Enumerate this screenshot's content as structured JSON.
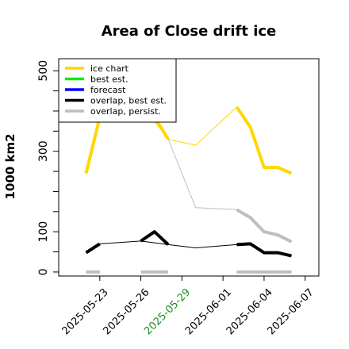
{
  "chart_data": {
    "type": "line",
    "title": "Area of Close drift ice",
    "ylabel": "1000 km2",
    "xlabel": "",
    "ylim": [
      -10,
      530
    ],
    "yticks": [
      0,
      100,
      300,
      500
    ],
    "xlim": [
      "2025-05-20",
      "2025-06-08"
    ],
    "xtick_labels": [
      "2025-05-23",
      "2025-05-26",
      "2025-05-29",
      "2025-06-01",
      "2025-06-04",
      "2025-06-07"
    ],
    "highlight_color": "#228b22",
    "highlight_tick": "2025-05-29",
    "legend": {
      "position": "top-left",
      "entries": [
        {
          "label": "ice chart",
          "color": "#ffd700"
        },
        {
          "label": "best est.",
          "color": "#00ee00"
        },
        {
          "label": "forecast",
          "color": "#0000ff"
        },
        {
          "label": "overlap, best est.",
          "color": "#000000"
        },
        {
          "label": "overlap, persist.",
          "color": "#bebebe"
        }
      ]
    },
    "series": [
      {
        "name": "ice chart",
        "color": "#ffd700",
        "style": "thick",
        "points": [
          [
            "2025-05-22",
            245
          ],
          [
            "2025-05-23",
            385
          ]
        ]
      },
      {
        "name": "ice chart",
        "color": "#ffd700",
        "style": "thick",
        "points": [
          [
            "2025-05-26",
            418
          ],
          [
            "2025-05-27",
            385
          ],
          [
            "2025-05-28",
            330
          ]
        ]
      },
      {
        "name": "ice chart",
        "color": "#ffd700",
        "style": "thick",
        "points": [
          [
            "2025-06-02",
            410
          ],
          [
            "2025-06-03",
            360
          ],
          [
            "2025-06-04",
            260
          ],
          [
            "2025-06-05",
            260
          ],
          [
            "2025-06-06",
            245
          ]
        ]
      },
      {
        "name": "ice chart",
        "color": "#ffd700",
        "style": "thin",
        "points": [
          [
            "2025-05-23",
            385
          ],
          [
            "2025-05-26",
            418
          ],
          [
            "2025-05-28",
            330
          ],
          [
            "2025-05-30",
            315
          ],
          [
            "2025-06-02",
            410
          ]
        ]
      },
      {
        "name": "overlap, best est.",
        "color": "#000000",
        "style": "thick",
        "points": [
          [
            "2025-05-22",
            48
          ],
          [
            "2025-05-23",
            70
          ]
        ]
      },
      {
        "name": "overlap, best est.",
        "color": "#000000",
        "style": "thick",
        "points": [
          [
            "2025-05-26",
            77
          ],
          [
            "2025-05-27",
            100
          ],
          [
            "2025-05-28",
            68
          ]
        ]
      },
      {
        "name": "overlap, best est.",
        "color": "#000000",
        "style": "thick",
        "points": [
          [
            "2025-06-02",
            68
          ],
          [
            "2025-06-03",
            70
          ],
          [
            "2025-06-04",
            48
          ],
          [
            "2025-06-05",
            48
          ],
          [
            "2025-06-06",
            40
          ]
        ]
      },
      {
        "name": "overlap, best est.",
        "color": "#000000",
        "style": "thin",
        "points": [
          [
            "2025-05-23",
            70
          ],
          [
            "2025-05-26",
            77
          ],
          [
            "2025-05-28",
            68
          ],
          [
            "2025-05-30",
            60
          ],
          [
            "2025-06-02",
            68
          ]
        ]
      },
      {
        "name": "overlap, persist.",
        "color": "#bebebe",
        "style": "thick",
        "points": [
          [
            "2025-06-02",
            155
          ],
          [
            "2025-06-03",
            135
          ],
          [
            "2025-06-04",
            100
          ],
          [
            "2025-06-05",
            92
          ],
          [
            "2025-06-06",
            75
          ]
        ]
      },
      {
        "name": "overlap, persist.",
        "color": "#bebebe",
        "style": "thin",
        "points": [
          [
            "2025-05-28",
            330
          ],
          [
            "2025-05-30",
            160
          ],
          [
            "2025-06-02",
            155
          ]
        ]
      },
      {
        "name": "overlap, persist.",
        "color": "#bebebe",
        "style": "thick",
        "points": [
          [
            "2025-05-22",
            0
          ],
          [
            "2025-05-23",
            0
          ]
        ]
      },
      {
        "name": "overlap, persist.",
        "color": "#bebebe",
        "style": "thick",
        "points": [
          [
            "2025-05-26",
            0
          ],
          [
            "2025-05-28",
            0
          ]
        ]
      },
      {
        "name": "overlap, persist.",
        "color": "#bebebe",
        "style": "thick",
        "points": [
          [
            "2025-06-02",
            0
          ],
          [
            "2025-06-06",
            0
          ]
        ]
      }
    ]
  }
}
